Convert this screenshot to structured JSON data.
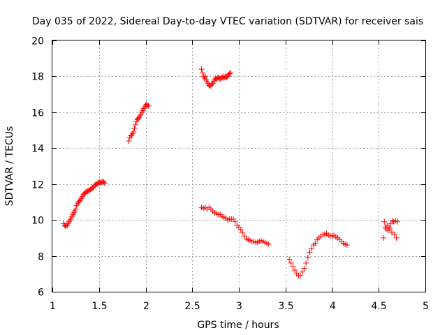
{
  "chart_data": {
    "type": "scatter",
    "title": "Day 035 of 2022, Sidereal Day-to-day VTEC variation (SDTVAR) for receiver sais",
    "xlabel": "GPS time / hours",
    "ylabel": "SDTVAR / TECUs",
    "xlim": [
      1,
      5
    ],
    "ylim": [
      6,
      20
    ],
    "xticks": [
      1,
      1.5,
      2,
      2.5,
      3,
      3.5,
      4,
      4.5,
      5
    ],
    "yticks": [
      6,
      8,
      10,
      12,
      14,
      16,
      18,
      20
    ],
    "xtick_labels": [
      "1",
      "1.5",
      "2",
      "2.5",
      "3",
      "3.5",
      "4",
      "4.5",
      "5"
    ],
    "ytick_labels": [
      "6",
      "8",
      "10",
      "12",
      "14",
      "16",
      "18",
      "20"
    ],
    "grid": true,
    "marker": "+",
    "series_color": "#ff0000",
    "series": [
      {
        "name": "segment-1",
        "x": [
          1.12,
          1.13,
          1.14,
          1.15,
          1.16,
          1.17,
          1.18,
          1.19,
          1.2,
          1.21,
          1.22,
          1.23,
          1.24,
          1.25,
          1.26,
          1.27,
          1.28,
          1.29,
          1.3,
          1.31,
          1.32,
          1.33,
          1.34,
          1.35,
          1.36,
          1.37,
          1.38,
          1.39,
          1.4,
          1.41,
          1.42,
          1.43,
          1.44,
          1.45,
          1.46,
          1.47,
          1.48,
          1.49,
          1.5,
          1.51,
          1.52,
          1.53,
          1.54,
          1.55,
          1.56
        ],
        "y": [
          9.8,
          9.7,
          9.65,
          9.7,
          9.7,
          9.8,
          9.9,
          10.0,
          10.1,
          10.2,
          10.3,
          10.4,
          10.5,
          10.6,
          10.8,
          10.9,
          11.0,
          11.05,
          11.1,
          11.2,
          11.3,
          11.4,
          11.45,
          11.5,
          11.55,
          11.6,
          11.6,
          11.65,
          11.65,
          11.7,
          11.75,
          11.8,
          11.8,
          11.9,
          11.95,
          12.0,
          12.0,
          12.05,
          12.1,
          12.1,
          12.05,
          12.1,
          12.15,
          12.1,
          12.05
        ]
      },
      {
        "name": "segment-2",
        "x": [
          1.82,
          1.83,
          1.84,
          1.85,
          1.86,
          1.87,
          1.88,
          1.89,
          1.9,
          1.91,
          1.92,
          1.93,
          1.94,
          1.95,
          1.96,
          1.97,
          1.98,
          1.99,
          2.0,
          2.01,
          2.02,
          2.03
        ],
        "y": [
          14.4,
          14.6,
          14.7,
          14.7,
          14.8,
          14.9,
          15.1,
          15.3,
          15.5,
          15.6,
          15.65,
          15.7,
          15.8,
          15.9,
          16.0,
          16.1,
          16.2,
          16.3,
          16.4,
          16.45,
          16.4,
          16.35
        ]
      },
      {
        "name": "segment-3",
        "x": [
          2.6,
          2.61,
          2.62,
          2.63,
          2.64,
          2.65,
          2.66,
          2.67,
          2.68,
          2.69,
          2.7,
          2.71,
          2.72,
          2.73,
          2.74,
          2.75,
          2.76,
          2.77,
          2.78,
          2.79,
          2.8,
          2.81,
          2.82,
          2.83,
          2.84,
          2.85,
          2.86,
          2.87,
          2.88,
          2.89,
          2.9,
          2.91
        ],
        "y": [
          18.4,
          18.2,
          18.0,
          17.9,
          18.0,
          17.8,
          17.7,
          17.6,
          17.5,
          17.45,
          17.5,
          17.6,
          17.6,
          17.7,
          17.8,
          17.9,
          17.85,
          17.9,
          17.95,
          17.9,
          17.85,
          17.9,
          17.95,
          18.0,
          17.9,
          17.95,
          18.0,
          17.95,
          18.0,
          18.1,
          18.15,
          18.2
        ]
      },
      {
        "name": "segment-4",
        "x": [
          2.6,
          2.62,
          2.64,
          2.66,
          2.68,
          2.7,
          2.72,
          2.74,
          2.76,
          2.78,
          2.8,
          2.82,
          2.84,
          2.86,
          2.88,
          2.9,
          2.92,
          2.94,
          2.96,
          2.98,
          3.0,
          3.02,
          3.04,
          3.06,
          3.08,
          3.1,
          3.12,
          3.14,
          3.16,
          3.18,
          3.2,
          3.22,
          3.24,
          3.26,
          3.28,
          3.3,
          3.32
        ],
        "y": [
          10.7,
          10.65,
          10.7,
          10.6,
          10.7,
          10.6,
          10.5,
          10.4,
          10.35,
          10.3,
          10.3,
          10.2,
          10.15,
          10.1,
          10.0,
          10.05,
          10.05,
          10.05,
          9.9,
          9.7,
          9.6,
          9.45,
          9.3,
          9.1,
          8.95,
          8.9,
          8.85,
          8.8,
          8.8,
          8.75,
          8.75,
          8.8,
          8.85,
          8.8,
          8.75,
          8.7,
          8.65
        ]
      },
      {
        "name": "segment-5",
        "x": [
          3.54,
          3.56,
          3.58,
          3.6,
          3.62,
          3.64,
          3.66,
          3.68,
          3.7,
          3.72,
          3.74,
          3.76,
          3.78,
          3.8,
          3.82,
          3.84,
          3.86,
          3.88,
          3.9,
          3.92,
          3.94,
          3.96,
          3.98,
          4.0,
          4.02,
          4.04,
          4.06,
          4.08,
          4.1,
          4.12,
          4.14,
          4.16
        ],
        "y": [
          7.8,
          7.6,
          7.4,
          7.2,
          7.0,
          6.9,
          6.9,
          7.1,
          7.3,
          7.6,
          7.9,
          8.2,
          8.4,
          8.6,
          8.7,
          8.9,
          9.0,
          9.1,
          9.2,
          9.2,
          9.25,
          9.15,
          9.1,
          9.1,
          9.15,
          9.05,
          9.0,
          8.9,
          8.8,
          8.7,
          8.65,
          8.6
        ]
      },
      {
        "name": "segment-6",
        "x": [
          4.55,
          4.56,
          4.57,
          4.58,
          4.59,
          4.6,
          4.61,
          4.62,
          4.63,
          4.64,
          4.65,
          4.66,
          4.67,
          4.68,
          4.69,
          4.7
        ],
        "y": [
          9.0,
          9.9,
          9.6,
          9.5,
          9.7,
          9.4,
          9.6,
          9.5,
          9.8,
          9.3,
          9.95,
          9.9,
          9.2,
          9.95,
          9.0,
          9.9
        ]
      }
    ]
  }
}
